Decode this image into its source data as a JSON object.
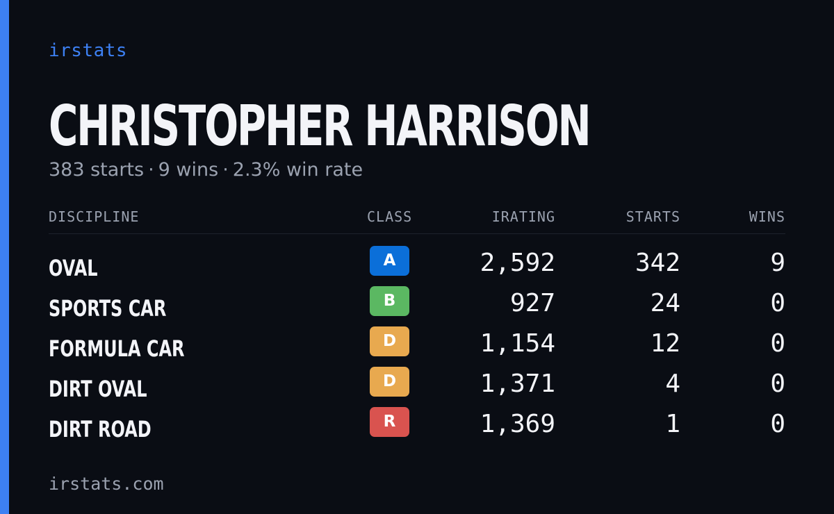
{
  "brand": {
    "logo_text": "irstats",
    "footer_url": "irstats.com",
    "accent_color": "#3d80f3"
  },
  "driver": {
    "name": "CHRISTOPHER HARRISON",
    "starts_text": "383 starts",
    "wins_text": "9 wins",
    "win_rate_text": "2.3% win rate",
    "separator": "·"
  },
  "table": {
    "headers": {
      "discipline": "DISCIPLINE",
      "class": "CLASS",
      "irating": "IRATING",
      "starts": "STARTS",
      "wins": "WINS"
    },
    "rows": [
      {
        "discipline": "OVAL",
        "class": "A",
        "class_color": "#0b6fd9",
        "irating": "2,592",
        "starts": "342",
        "wins": "9"
      },
      {
        "discipline": "SPORTS CAR",
        "class": "B",
        "class_color": "#5bb862",
        "irating": "927",
        "starts": "24",
        "wins": "0"
      },
      {
        "discipline": "FORMULA CAR",
        "class": "D",
        "class_color": "#e8a94f",
        "irating": "1,154",
        "starts": "12",
        "wins": "0"
      },
      {
        "discipline": "DIRT OVAL",
        "class": "D",
        "class_color": "#e8a94f",
        "irating": "1,371",
        "starts": "4",
        "wins": "0"
      },
      {
        "discipline": "DIRT ROAD",
        "class": "R",
        "class_color": "#d9534f",
        "irating": "1,369",
        "starts": "1",
        "wins": "0"
      }
    ]
  }
}
